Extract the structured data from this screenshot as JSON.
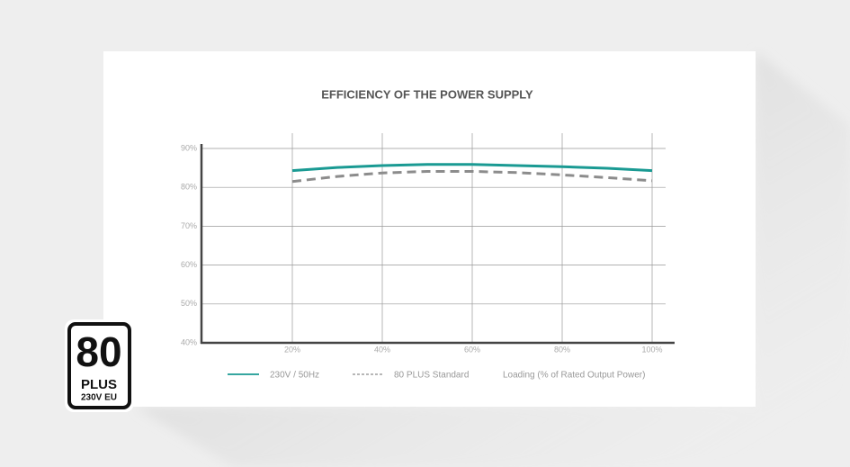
{
  "chart_data": {
    "type": "line",
    "title": "EFFICIENCY OF THE POWER SUPPLY",
    "x_label": "Loading (% of Rated Output Power)",
    "x": [
      20,
      30,
      40,
      50,
      60,
      70,
      80,
      90,
      100
    ],
    "series": [
      {
        "name": "230V / 50Hz",
        "color": "#1a9a93",
        "dashed": false,
        "values": [
          84.3,
          85.1,
          85.6,
          85.9,
          85.9,
          85.6,
          85.3,
          84.9,
          84.3
        ]
      },
      {
        "name": "80 PLUS Standard",
        "color": "#8c8c8c",
        "dashed": true,
        "values": [
          81.5,
          82.8,
          83.7,
          84.1,
          84.1,
          83.8,
          83.2,
          82.5,
          81.7
        ]
      }
    ],
    "xlim": [
      0,
      103
    ],
    "ylim": [
      40,
      90
    ],
    "xticks": [
      {
        "value": 20,
        "label": "20%"
      },
      {
        "value": 40,
        "label": "40%"
      },
      {
        "value": 60,
        "label": "60%"
      },
      {
        "value": 80,
        "label": "80%"
      },
      {
        "value": 100,
        "label": "100%"
      }
    ],
    "yticks": [
      {
        "value": 40,
        "label": "40%"
      },
      {
        "value": 50,
        "label": "50%"
      },
      {
        "value": 60,
        "label": "60%"
      },
      {
        "value": 70,
        "label": "70%"
      },
      {
        "value": 80,
        "label": "80%"
      },
      {
        "value": 90,
        "label": "90%"
      }
    ],
    "grid": true
  },
  "badge": {
    "number": "80",
    "brand": "PLUS",
    "rating": "230V EU"
  }
}
